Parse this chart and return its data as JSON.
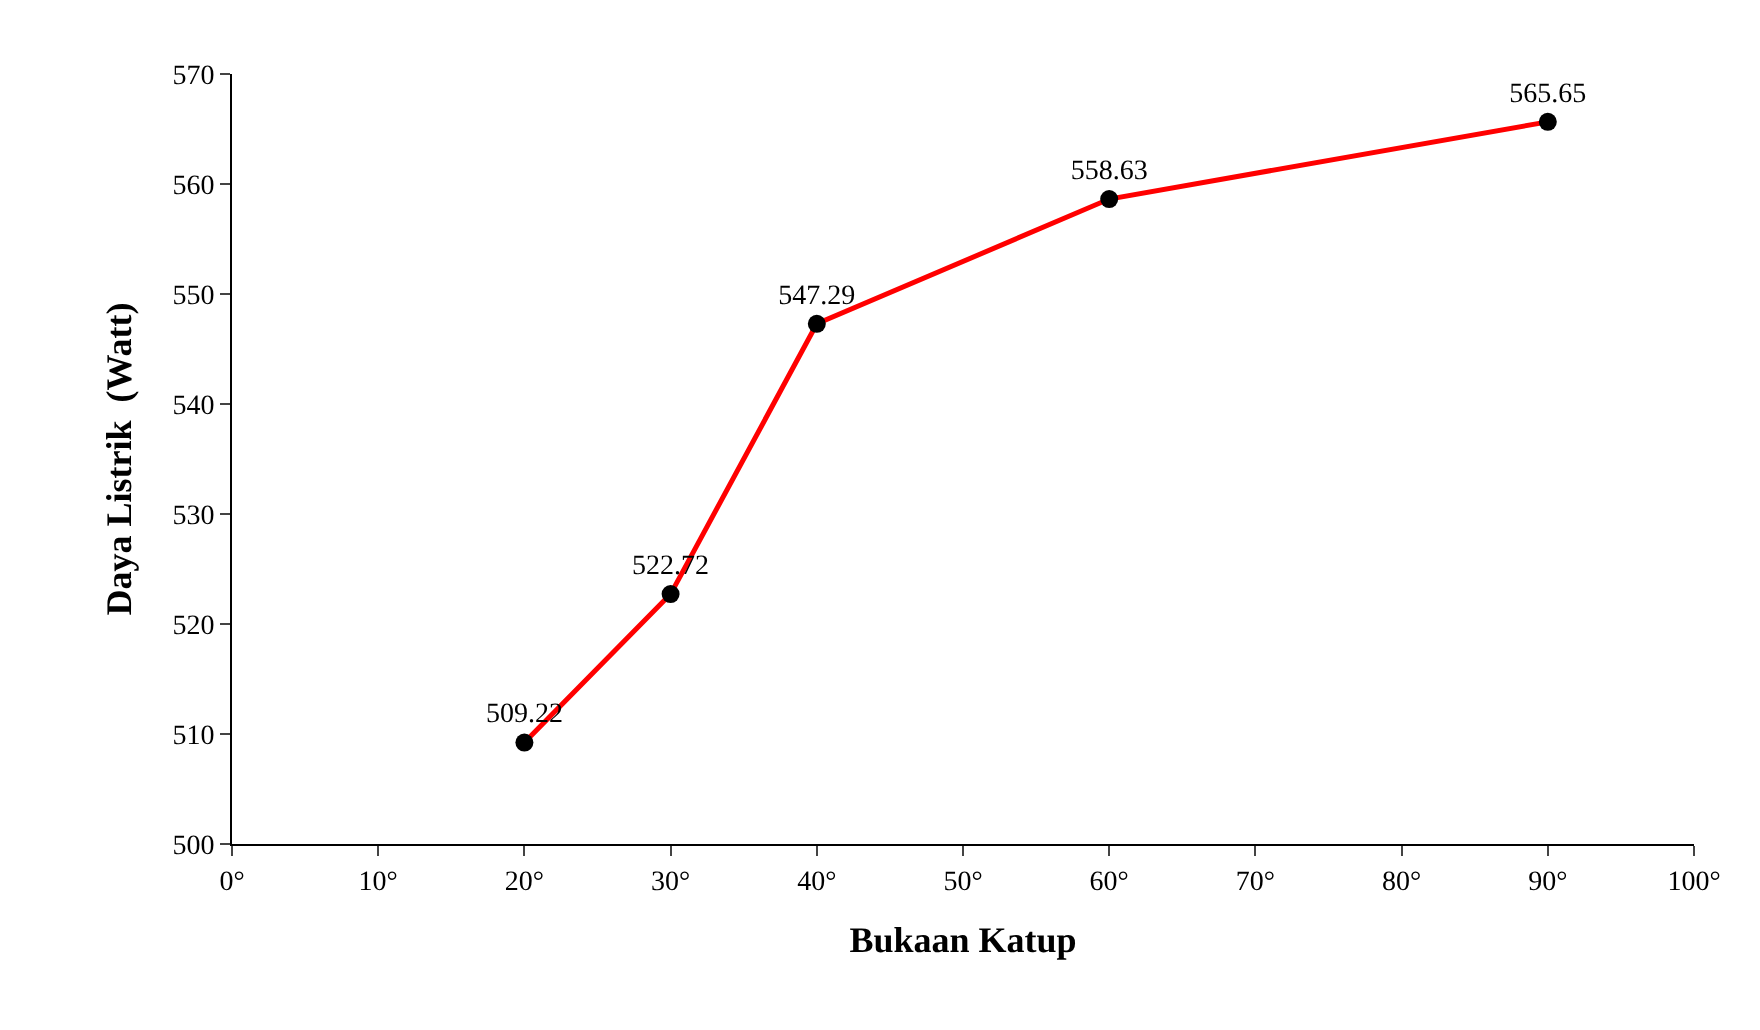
{
  "chart_data": {
    "type": "line",
    "xlabel": "Bukaan Katup",
    "ylabel": "Daya Listrik  (Watt)",
    "x": [
      20,
      30,
      40,
      60,
      90
    ],
    "series": [
      {
        "color": "#ff0000",
        "values": [
          509.22,
          522.72,
          547.29,
          558.63,
          565.65
        ]
      }
    ],
    "xlim": [
      0,
      100
    ],
    "xticks": [
      {
        "value": 0,
        "label": "0°"
      },
      {
        "value": 10,
        "label": "10°"
      },
      {
        "value": 20,
        "label": "20°"
      },
      {
        "value": 30,
        "label": "30°"
      },
      {
        "value": 40,
        "label": "40°"
      },
      {
        "value": 50,
        "label": "50°"
      },
      {
        "value": 60,
        "label": "60°"
      },
      {
        "value": 70,
        "label": "70°"
      },
      {
        "value": 80,
        "label": "80°"
      },
      {
        "value": 90,
        "label": "90°"
      },
      {
        "value": 100,
        "label": "100°"
      }
    ],
    "ylim": [
      500,
      570
    ],
    "yticks": [
      500,
      510,
      520,
      530,
      540,
      550,
      560,
      570
    ],
    "data_labels": true,
    "marker": "circle",
    "line_style": "solid"
  }
}
